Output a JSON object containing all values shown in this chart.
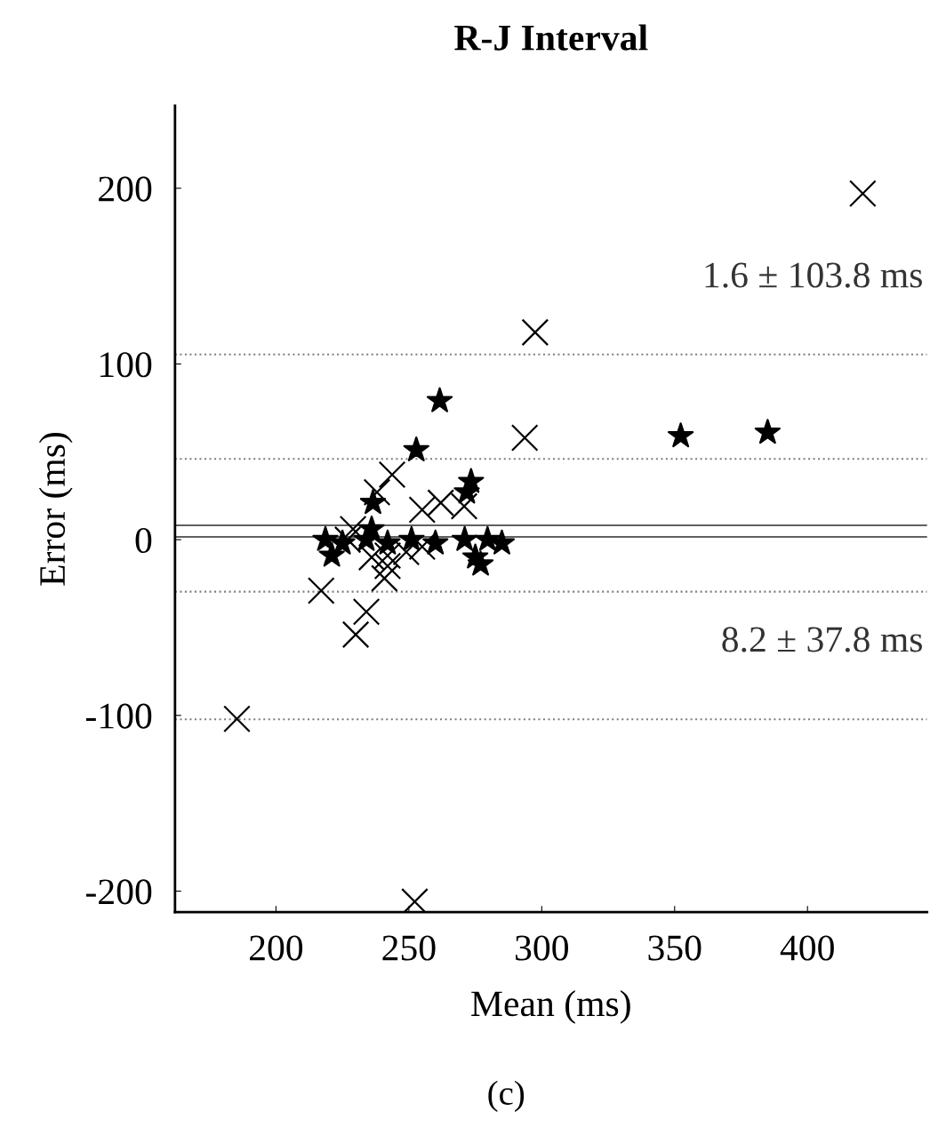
{
  "chart_data": {
    "type": "scatter",
    "title": "R-J Interval",
    "xlabel": "Mean (ms)",
    "ylabel": "Error (ms)",
    "xlim": [
      162,
      445
    ],
    "xticks": [
      200,
      250,
      300,
      350,
      400
    ],
    "ylim": [
      -212,
      247
    ],
    "yticks": [
      -200,
      -100,
      0,
      100,
      200
    ],
    "grid": false,
    "series": [
      {
        "color": "#000000",
        "marker": "cross",
        "x": [
          420.8,
          297.5,
          293.6,
          185.3,
          252.2,
          217,
          234,
          230,
          240.8,
          243.7,
          238,
          255,
          262,
          270.8,
          227,
          236,
          242,
          249,
          255,
          242,
          229
        ],
        "values": [
          197,
          118,
          58,
          -102,
          -206,
          -29,
          -41,
          -54,
          -22,
          37,
          27,
          17,
          21,
          19,
          0,
          -10,
          -9,
          -7,
          -4,
          -15,
          6
        ]
      },
      {
        "color": "#000000",
        "marker": "star",
        "x": [
          261.6,
          252.8,
          273.4,
          271.8,
          236.5,
          352.3,
          385,
          218.6,
          225,
          234,
          242,
          251,
          260,
          271,
          279.6,
          285,
          277,
          275,
          221,
          236
        ],
        "values": [
          79,
          51,
          33,
          27,
          21,
          59,
          61,
          0,
          -2,
          0,
          -2,
          0,
          -2,
          0,
          0,
          -2,
          -14,
          -10,
          -9,
          6
        ]
      }
    ],
    "ref_lines": [
      {
        "axis": "y",
        "value": 105.4,
        "color": "#808080",
        "line_style": "dotted"
      },
      {
        "axis": "y",
        "value": 1.6,
        "color": "#606060",
        "line_style": "solid"
      },
      {
        "axis": "y",
        "value": -102.2,
        "color": "#808080",
        "line_style": "dotted"
      },
      {
        "axis": "y",
        "value": 46.0,
        "color": "#808080",
        "line_style": "dotted"
      },
      {
        "axis": "y",
        "value": 8.2,
        "color": "#606060",
        "line_style": "solid"
      },
      {
        "axis": "y",
        "value": -29.6,
        "color": "#808080",
        "line_style": "dotted"
      }
    ],
    "annotations": [
      "1.6 ± 103.8 ms",
      "8.2 ± 37.8 ms",
      "(c)"
    ]
  }
}
